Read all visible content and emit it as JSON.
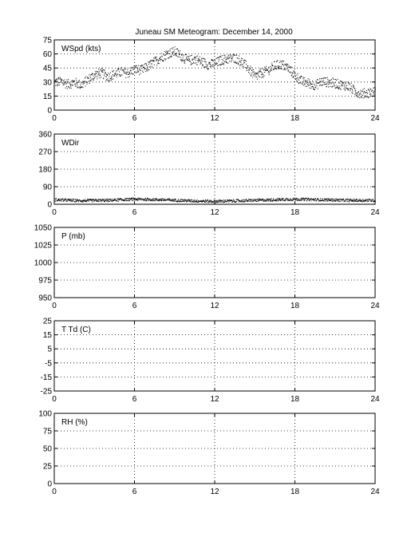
{
  "title": "Juneau SM Meteogram:   December 14, 2000",
  "x_axis": {
    "ticks": [
      0,
      6,
      12,
      18,
      24
    ],
    "range": [
      0,
      24
    ]
  },
  "chart_data": [
    {
      "type": "scatter",
      "id": "wspd",
      "label": "WSpd (kts)",
      "ylim": [
        0,
        75
      ],
      "yticks": [
        0,
        15,
        30,
        45,
        60,
        75
      ],
      "grid": true,
      "trend": {
        "x": [
          0,
          0.5,
          1.0,
          1.5,
          2.0,
          2.5,
          3.0,
          3.5,
          4.0,
          4.5,
          5.0,
          5.5,
          6.0,
          6.5,
          7.0,
          7.5,
          8.0,
          8.5,
          9.0,
          9.5,
          10.0,
          10.5,
          11.0,
          11.5,
          12.0,
          12.5,
          13.0,
          13.5,
          14.0,
          14.5,
          15.0,
          15.5,
          16.0,
          16.5,
          17.0,
          17.5,
          18.0,
          18.5,
          19.0,
          19.5,
          20.0,
          20.5,
          21.0,
          21.5,
          22.0,
          22.5,
          23.0,
          23.5,
          24.0
        ],
        "y": [
          30,
          31,
          28,
          30,
          27,
          33,
          38,
          40,
          36,
          39,
          41,
          40,
          44,
          43,
          47,
          52,
          57,
          61,
          63,
          58,
          53,
          55,
          52,
          49,
          50,
          54,
          55,
          56,
          52,
          45,
          36,
          40,
          43,
          48,
          49,
          45,
          37,
          31,
          29,
          27,
          31,
          30,
          29,
          27,
          26,
          20,
          18,
          19,
          20
        ]
      }
    },
    {
      "type": "scatter",
      "id": "wdir",
      "label": "WDir",
      "ylim": [
        0,
        360
      ],
      "yticks": [
        0,
        90,
        180,
        270,
        360
      ],
      "grid": true,
      "trend": {
        "x": [
          0,
          2,
          4,
          6,
          8,
          10,
          12,
          14,
          16,
          18,
          20,
          22,
          24
        ],
        "y": [
          25,
          20,
          22,
          28,
          25,
          20,
          17,
          20,
          24,
          28,
          25,
          22,
          22
        ]
      }
    },
    {
      "type": "line",
      "id": "pres",
      "label": "P (mb)",
      "ylim": [
        950,
        1050
      ],
      "yticks": [
        950,
        975,
        1000,
        1025,
        1050
      ],
      "grid": true
    },
    {
      "type": "line",
      "id": "temp",
      "label": "T Td (C)",
      "ylim": [
        -25,
        25
      ],
      "yticks": [
        -25,
        -15,
        -5,
        5,
        15,
        25
      ],
      "grid": true
    },
    {
      "type": "line",
      "id": "rh",
      "label": "RH (%)",
      "ylim": [
        0,
        100
      ],
      "yticks": [
        0,
        25,
        50,
        75,
        100
      ],
      "grid": true
    }
  ]
}
